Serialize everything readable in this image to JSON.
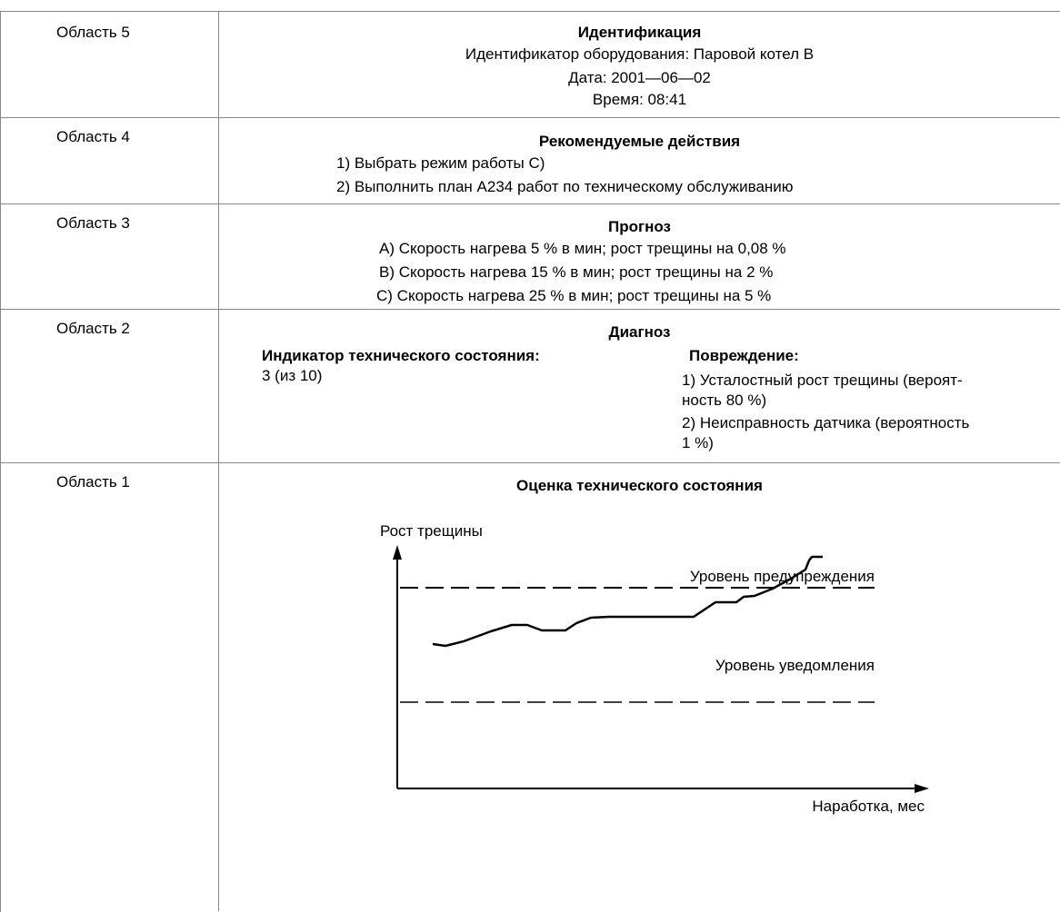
{
  "area5": {
    "label": "Область 5",
    "title": "Идентификация",
    "equipment": "Идентификатор оборудования: Паровой котел В",
    "date": "Дата: 2001—06—02",
    "time": "Время: 08:41"
  },
  "area4": {
    "label": "Область 4",
    "title": "Рекомендуемые действия",
    "items": [
      "1)  Выбрать режим работы С)",
      "2)  Выполнить план А234 работ по техническому обслуживанию"
    ]
  },
  "area3": {
    "label": "Область 3",
    "title": "Прогноз",
    "items": [
      "А)  Скорость нагрева 5 % в мин; рост трещины на 0,08 %",
      "В)  Скорость нагрева 15 % в мин; рост трещины на 2 %",
      "С)  Скорость нагрева 25 % в мин; рост трещины на 5 %"
    ]
  },
  "area2": {
    "label": "Область 2",
    "title": "Диагноз",
    "indicator_heading": "Индикатор технического состояния:",
    "indicator_value": "3 (из 10)",
    "damage_heading": "Повреждение:",
    "damage_lines": [
      "1)  Усталостный рост трещины (вероят-",
      "ность 80 %)",
      "2)  Неисправность датчика (вероятность",
      "1 %)"
    ]
  },
  "area1": {
    "label": "Область 1",
    "title": "Оценка технического состояния"
  },
  "chart_data": {
    "type": "line",
    "ylabel": "Рост трещины",
    "xlabel": "Наработка, мес",
    "reference_lines": [
      {
        "name": "Уровень предупреждения",
        "style": "dashed"
      },
      {
        "name": "Уровень уведомления",
        "style": "dashed"
      }
    ],
    "series": [
      {
        "style": "solid",
        "color": "#000000"
      }
    ]
  }
}
